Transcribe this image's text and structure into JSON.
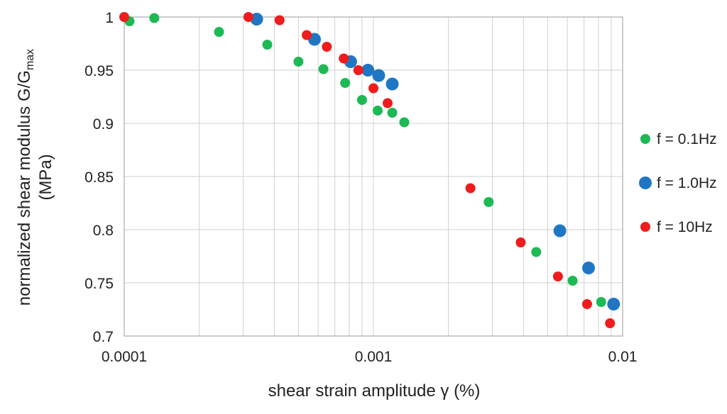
{
  "chart_data": {
    "type": "scatter",
    "title": "",
    "xlabel": "shear strain amplitude γ (%)",
    "ylabel_line1": "normalized shear modulus G/G",
    "ylabel_sub": "max",
    "ylabel_line2": "(MPa)",
    "xscale": "log",
    "xlim": [
      0.0001,
      0.01
    ],
    "ylim": [
      0.7,
      1.0
    ],
    "grid": true,
    "legend_position": "right",
    "x_ticks": [
      {
        "value": 0.0001,
        "label": "0.0001"
      },
      {
        "value": 0.001,
        "label": "0.001"
      },
      {
        "value": 0.01,
        "label": "0.01"
      }
    ],
    "y_ticks": [
      {
        "value": 0.7,
        "label": "0.7"
      },
      {
        "value": 0.75,
        "label": "0.75"
      },
      {
        "value": 0.8,
        "label": "0.8"
      },
      {
        "value": 0.85,
        "label": "0.85"
      },
      {
        "value": 0.9,
        "label": "0.9"
      },
      {
        "value": 0.95,
        "label": "0.95"
      },
      {
        "value": 1.0,
        "label": "1"
      }
    ],
    "series": [
      {
        "name": "f = 0.1Hz",
        "color": "#1db954",
        "points": [
          [
            0.000105,
            0.996
          ],
          [
            0.000132,
            0.999
          ],
          [
            0.00024,
            0.986
          ],
          [
            0.000375,
            0.974
          ],
          [
            0.0005,
            0.958
          ],
          [
            0.00063,
            0.951
          ],
          [
            0.00077,
            0.938
          ],
          [
            0.0009,
            0.922
          ],
          [
            0.00104,
            0.912
          ],
          [
            0.00119,
            0.91
          ],
          [
            0.00133,
            0.901
          ],
          [
            0.0029,
            0.826
          ],
          [
            0.0045,
            0.779
          ],
          [
            0.0063,
            0.752
          ],
          [
            0.0082,
            0.732
          ]
        ]
      },
      {
        "name": "f = 1.0Hz",
        "color": "#1f77c4",
        "points": [
          [
            0.00034,
            0.998
          ],
          [
            0.00058,
            0.979
          ],
          [
            0.00081,
            0.958
          ],
          [
            0.00095,
            0.95
          ],
          [
            0.00105,
            0.945
          ],
          [
            0.00119,
            0.937
          ],
          [
            0.0056,
            0.799
          ],
          [
            0.0073,
            0.764
          ],
          [
            0.0092,
            0.73
          ]
        ]
      },
      {
        "name": "f = 10Hz",
        "color": "#ee1c1c",
        "points": [
          [
            0.0001,
            1.0
          ],
          [
            0.000315,
            1.0
          ],
          [
            0.00042,
            0.997
          ],
          [
            0.00054,
            0.983
          ],
          [
            0.00065,
            0.972
          ],
          [
            0.00076,
            0.961
          ],
          [
            0.00087,
            0.95
          ],
          [
            0.001,
            0.933
          ],
          [
            0.00114,
            0.919
          ],
          [
            0.00245,
            0.839
          ],
          [
            0.0039,
            0.788
          ],
          [
            0.0055,
            0.756
          ],
          [
            0.0072,
            0.73
          ],
          [
            0.0089,
            0.712
          ]
        ]
      }
    ]
  }
}
